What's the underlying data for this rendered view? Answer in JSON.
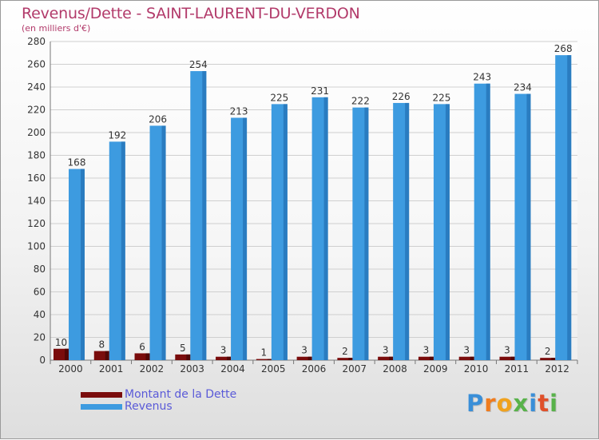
{
  "header": {
    "title": "Revenus/Dette - SAINT-LAURENT-DU-VERDON",
    "subtitle": "(en milliers d'€)"
  },
  "colors": {
    "title": "#b23a6a",
    "dette": "#7a0c0c",
    "revenus": "#3d9be0",
    "legend_text": "#5a5ad8",
    "grid": "#cfcfcf"
  },
  "legend": {
    "dette_label": "Montant de la Dette",
    "revenus_label": "Revenus"
  },
  "brand": {
    "letters": [
      "P",
      "r",
      "o",
      "x",
      "i",
      "t",
      "i"
    ],
    "colors": [
      "#3a8fd8",
      "#f07c1e",
      "#f0a21e",
      "#58b24a",
      "#3a8fd8",
      "#e0502a",
      "#58b24a"
    ]
  },
  "chart_data": {
    "type": "bar",
    "categories": [
      "2000",
      "2001",
      "2002",
      "2003",
      "2004",
      "2005",
      "2006",
      "2007",
      "2008",
      "2009",
      "2010",
      "2011",
      "2012"
    ],
    "series": [
      {
        "name": "Montant de la Dette",
        "values": [
          10,
          8,
          6,
          5,
          3,
          1,
          3,
          2,
          3,
          3,
          3,
          3,
          2
        ]
      },
      {
        "name": "Revenus",
        "values": [
          168,
          192,
          206,
          254,
          213,
          225,
          231,
          222,
          226,
          225,
          243,
          234,
          268
        ]
      }
    ],
    "y_ticks": [
      0,
      20,
      40,
      60,
      80,
      100,
      120,
      140,
      160,
      180,
      200,
      220,
      240,
      260,
      280
    ],
    "ylim": [
      0,
      280
    ],
    "grid": true,
    "legend_position": "bottom-left"
  }
}
